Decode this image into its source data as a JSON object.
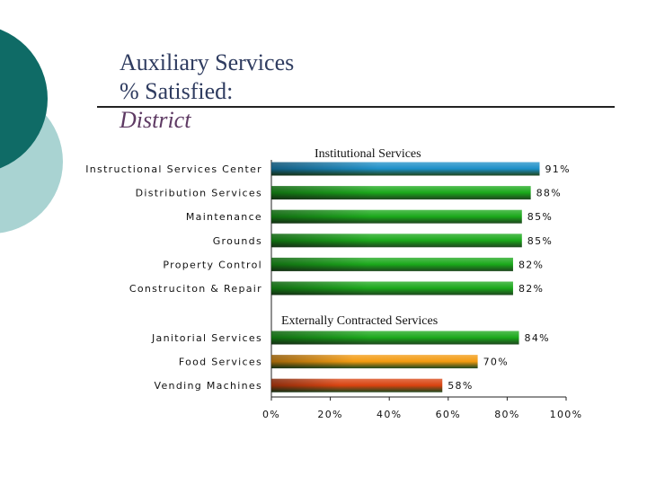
{
  "slide": {
    "title_lines": [
      "Auxiliary Services",
      "% Satisfied:",
      "District"
    ]
  },
  "colors": {
    "theme_dark_teal": "#0f6b66",
    "theme_light_teal": "#a9d3d2",
    "title_text": "#2f3c60",
    "title_italic": "#5e3a63"
  },
  "chart_data": {
    "type": "bar",
    "orientation": "horizontal",
    "title": "",
    "xlabel": "",
    "ylabel": "",
    "xlim": [
      0,
      100
    ],
    "ticks": [
      "0%",
      "20%",
      "40%",
      "60%",
      "80%",
      "100%"
    ],
    "groups": [
      {
        "label": "Institutional Services",
        "bars": [
          {
            "category": "Instructional Services Center",
            "value": 91,
            "label": "91%",
            "color": "#1c8fc8"
          },
          {
            "category": "Distribution Services",
            "value": 88,
            "label": "88%",
            "color": "#1aa81a"
          },
          {
            "category": "Maintenance",
            "value": 85,
            "label": "85%",
            "color": "#1aa81a"
          },
          {
            "category": "Grounds",
            "value": 85,
            "label": "85%",
            "color": "#1aa81a"
          },
          {
            "category": "Property Control",
            "value": 82,
            "label": "82%",
            "color": "#1aa81a"
          },
          {
            "category": "Construciton & Repair",
            "value": 82,
            "label": "82%",
            "color": "#1aa81a"
          }
        ]
      },
      {
        "label": "Externally Contracted Services",
        "bars": [
          {
            "category": "Janitorial Services",
            "value": 84,
            "label": "84%",
            "color": "#1aa81a"
          },
          {
            "category": "Food Services",
            "value": 70,
            "label": "70%",
            "color": "#f39a10"
          },
          {
            "category": "Vending Machines",
            "value": 58,
            "label": "58%",
            "color": "#d9420f"
          }
        ]
      }
    ]
  }
}
